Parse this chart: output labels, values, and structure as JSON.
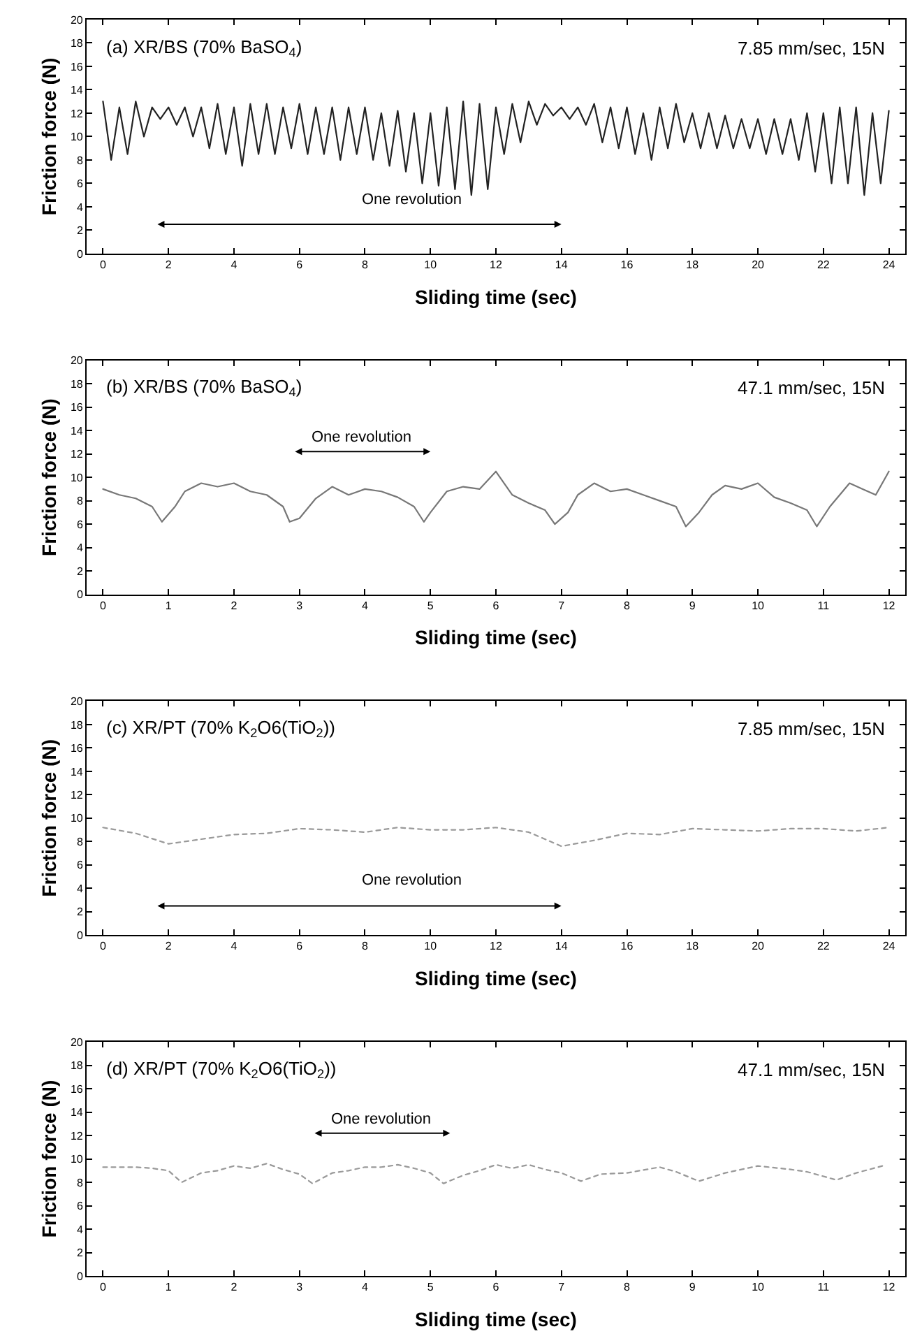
{
  "chart_data": [
    {
      "type": "line",
      "xlabel": "Sliding time (sec)",
      "ylabel": "Friction force (N)",
      "annotations": [
        "(a) XR/BS (70% BaSO$_{4}$)",
        "7.85 mm/sec, 15N",
        "One revolution"
      ],
      "x": [
        0,
        0.25,
        0.5,
        0.75,
        1,
        1.25,
        1.5,
        1.75,
        2,
        2.25,
        2.5,
        2.75,
        3,
        3.25,
        3.5,
        3.75,
        4,
        4.25,
        4.5,
        4.75,
        5,
        5.25,
        5.5,
        5.75,
        6,
        6.25,
        6.5,
        6.75,
        7,
        7.25,
        7.5,
        7.75,
        8,
        8.25,
        8.5,
        8.75,
        9,
        9.25,
        9.5,
        9.75,
        10,
        10.25,
        10.5,
        10.75,
        11,
        11.25,
        11.5,
        11.75,
        12,
        12.25,
        12.5,
        12.75,
        13,
        13.25,
        13.5,
        13.75,
        14,
        14.25,
        14.5,
        14.75,
        15,
        15.25,
        15.5,
        15.75,
        16,
        16.25,
        16.5,
        16.75,
        17,
        17.25,
        17.5,
        17.75,
        18,
        18.25,
        18.5,
        18.75,
        19,
        19.25,
        19.5,
        19.75,
        20,
        20.25,
        20.5,
        20.75,
        21,
        21.25,
        21.5,
        21.75,
        22,
        22.25,
        22.5,
        22.75,
        23,
        23.25,
        23.5,
        23.75,
        24
      ],
      "series": [
        {
          "color": "#222222",
          "values": [
            13,
            8,
            12.5,
            8.5,
            13,
            10,
            12.5,
            11.5,
            12.5,
            11,
            12.5,
            10,
            12.5,
            9,
            12.8,
            8.5,
            12.5,
            7.5,
            12.8,
            8.5,
            12.8,
            8.5,
            12.5,
            9,
            12.8,
            8.5,
            12.5,
            8.5,
            12.5,
            8,
            12.5,
            8.5,
            12.5,
            8,
            12,
            7.5,
            12.2,
            7,
            12,
            6,
            12,
            5.8,
            12.5,
            5.5,
            13,
            5,
            12.8,
            5.5,
            12.5,
            8.5,
            12.8,
            9.5,
            13,
            11,
            12.8,
            11.8,
            12.5,
            11.5,
            12.5,
            11,
            12.8,
            9.5,
            12.5,
            9,
            12.5,
            8.5,
            12,
            8,
            12.5,
            9,
            12.8,
            9.5,
            12,
            9,
            12,
            9,
            11.8,
            9,
            11.5,
            9,
            11.5,
            8.5,
            11.5,
            8.5,
            11.5,
            8,
            12,
            7,
            12,
            6,
            12.5,
            6,
            12.5,
            5,
            12,
            6,
            12.2
          ]
        }
      ],
      "xlim": [
        -0.5,
        24.5
      ],
      "xticks": [
        0,
        2,
        4,
        6,
        8,
        10,
        12,
        14,
        16,
        18,
        20,
        22,
        24
      ],
      "ylim": [
        0,
        20
      ],
      "yticks": [
        0,
        2,
        4,
        6,
        8,
        10,
        12,
        14,
        16,
        18,
        20
      ],
      "line_style": "solid"
    },
    {
      "type": "line",
      "xlabel": "Sliding time (sec)",
      "ylabel": "Friction force (N)",
      "annotations": [
        "(b) XR/BS (70% BaSO$_{4}$)",
        "47.1 mm/sec, 15N",
        "One revolution"
      ],
      "x": [
        0,
        0.25,
        0.5,
        0.75,
        0.9,
        1.1,
        1.25,
        1.5,
        1.75,
        2,
        2.25,
        2.5,
        2.75,
        2.85,
        3,
        3.25,
        3.5,
        3.75,
        4,
        4.25,
        4.5,
        4.75,
        4.9,
        5,
        5.25,
        5.5,
        5.75,
        6,
        6.25,
        6.5,
        6.75,
        6.9,
        7.1,
        7.25,
        7.5,
        7.75,
        8,
        8.25,
        8.5,
        8.75,
        8.9,
        9.1,
        9.3,
        9.5,
        9.75,
        10,
        10.25,
        10.5,
        10.75,
        10.9,
        11.1,
        11.4,
        11.6,
        11.8,
        12
      ],
      "series": [
        {
          "color": "#777777",
          "values": [
            9,
            8.5,
            8.2,
            7.5,
            6.2,
            7.5,
            8.8,
            9.5,
            9.2,
            9.5,
            8.8,
            8.5,
            7.5,
            6.2,
            6.5,
            8.2,
            9.2,
            8.5,
            9,
            8.8,
            8.3,
            7.5,
            6.2,
            7,
            8.8,
            9.2,
            9,
            10.5,
            8.5,
            7.8,
            7.2,
            6,
            7,
            8.5,
            9.5,
            8.8,
            9,
            8.5,
            8,
            7.5,
            5.8,
            7,
            8.5,
            9.3,
            9,
            9.5,
            8.3,
            7.8,
            7.2,
            5.8,
            7.5,
            9.5,
            9,
            8.5,
            10.5
          ]
        }
      ],
      "xlim": [
        -0.25,
        12.25
      ],
      "xticks": [
        0,
        1,
        2,
        3,
        4,
        5,
        6,
        7,
        8,
        9,
        10,
        11,
        12
      ],
      "ylim": [
        0,
        20
      ],
      "yticks": [
        0,
        2,
        4,
        6,
        8,
        10,
        12,
        14,
        16,
        18,
        20
      ],
      "line_style": "solid"
    },
    {
      "type": "line",
      "xlabel": "Sliding time (sec)",
      "ylabel": "Friction force (N)",
      "annotations": [
        "(c) XR/PT (70% K$_{2}$O6(TiO$_{2}$))",
        "7.85 mm/sec, 15N",
        "One revolution"
      ],
      "x": [
        0,
        1,
        2,
        3,
        4,
        5,
        6,
        7,
        8,
        9,
        10,
        11,
        12,
        13,
        14,
        15,
        16,
        17,
        18,
        19,
        20,
        21,
        22,
        23,
        24
      ],
      "series": [
        {
          "color": "#999999",
          "values": [
            9.2,
            8.7,
            7.8,
            8.2,
            8.6,
            8.7,
            9.1,
            9,
            8.8,
            9.2,
            9,
            9,
            9.2,
            8.8,
            7.6,
            8.1,
            8.7,
            8.6,
            9.1,
            9,
            8.9,
            9.1,
            9.1,
            8.9,
            9.2
          ]
        }
      ],
      "xlim": [
        -0.5,
        24.5
      ],
      "xticks": [
        0,
        2,
        4,
        6,
        8,
        10,
        12,
        14,
        16,
        18,
        20,
        22,
        24
      ],
      "ylim": [
        0,
        20
      ],
      "yticks": [
        0,
        2,
        4,
        6,
        8,
        10,
        12,
        14,
        16,
        18,
        20
      ],
      "line_style": "dotted"
    },
    {
      "type": "line",
      "xlabel": "Sliding time (sec)",
      "ylabel": "Friction force (N)",
      "annotations": [
        "(d) XR/PT (70% K$_{2}$O6(TiO$_{2}$))",
        "47.1 mm/sec, 15N",
        "One revolution"
      ],
      "x": [
        0,
        0.5,
        0.75,
        1,
        1.2,
        1.5,
        1.75,
        2,
        2.25,
        2.5,
        2.75,
        3,
        3.2,
        3.5,
        3.75,
        4,
        4.25,
        4.5,
        4.75,
        5,
        5.2,
        5.5,
        5.75,
        6,
        6.25,
        6.5,
        6.75,
        7,
        7.3,
        7.6,
        8,
        8.5,
        8.75,
        9.1,
        9.5,
        10,
        10.5,
        10.75,
        11.2,
        11.5,
        11.9
      ],
      "series": [
        {
          "color": "#999999",
          "values": [
            9.3,
            9.3,
            9.2,
            9,
            8,
            8.8,
            9,
            9.4,
            9.2,
            9.6,
            9.1,
            8.7,
            7.9,
            8.8,
            9,
            9.3,
            9.3,
            9.5,
            9.2,
            8.8,
            7.9,
            8.6,
            9,
            9.5,
            9.2,
            9.5,
            9.1,
            8.8,
            8.1,
            8.7,
            8.8,
            9.3,
            8.9,
            8.1,
            8.8,
            9.4,
            9.1,
            8.9,
            8.2,
            8.8,
            9.4
          ]
        }
      ],
      "xlim": [
        -0.25,
        12.25
      ],
      "xticks": [
        0,
        1,
        2,
        3,
        4,
        5,
        6,
        7,
        8,
        9,
        10,
        11,
        12
      ],
      "ylim": [
        0,
        20
      ],
      "yticks": [
        0,
        2,
        4,
        6,
        8,
        10,
        12,
        14,
        16,
        18,
        20
      ],
      "line_style": "dotted"
    }
  ]
}
